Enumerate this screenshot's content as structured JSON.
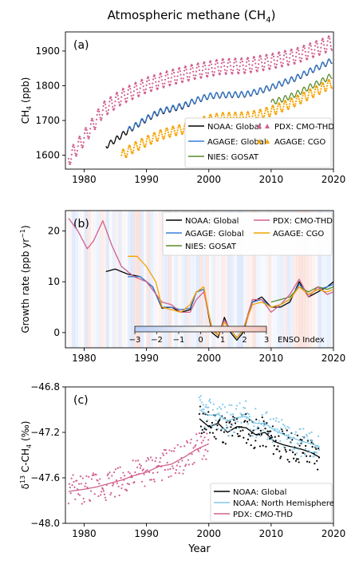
{
  "figure_title": "Atmospheric methane (CH",
  "figure_title_sub": "4",
  "figure_title_end": ")",
  "colors": {
    "noaa_global": "#000000",
    "agage_global": "#3a7fd5",
    "nies_gosat": "#5a8a2a",
    "pdx": "#d0608f",
    "agage_cgo": "#f4a300",
    "noaa_nh": "#80c8e6"
  },
  "chart_data": [
    {
      "type": "line",
      "panel_label": "(a)",
      "ylabel": "CH",
      "ylabel_sub": "4",
      "ylabel_end": " (ppb)",
      "xlim": [
        1977,
        2020
      ],
      "ylim": [
        1560,
        1955
      ],
      "xticks": [
        1980,
        1990,
        2000,
        2010,
        2020
      ],
      "yticks": [
        1600,
        1700,
        1800,
        1900
      ],
      "legend_position": "lower-right",
      "legend": [
        "NOAA: Global",
        "AGAGE: Global",
        "NIES: GOSAT",
        "PDX: CMO-THD",
        "AGAGE: CGO"
      ],
      "series": [
        {
          "name": "NOAA: Global",
          "key": "noaa_global",
          "style": "line",
          "x": [
            1983.5,
            1985,
            1987,
            1990,
            1992,
            1994,
            1996,
            1998,
            2000,
            2002,
            2004,
            2006,
            2008,
            2010,
            2012,
            2014,
            2016,
            2018,
            2019.8
          ],
          "y": [
            1626,
            1644,
            1670,
            1704,
            1724,
            1733,
            1742,
            1758,
            1770,
            1773,
            1774,
            1775,
            1784,
            1795,
            1809,
            1822,
            1840,
            1857,
            1873
          ]
        },
        {
          "name": "AGAGE: Global",
          "key": "agage_global",
          "style": "line",
          "x": [
            1987,
            1990,
            1992,
            1994,
            1996,
            1998,
            2000,
            2002,
            2004,
            2006,
            2008,
            2010,
            2012,
            2014,
            2016,
            2018,
            2019.8
          ],
          "y": [
            1672,
            1706,
            1726,
            1735,
            1744,
            1759,
            1771,
            1774,
            1775,
            1776,
            1785,
            1796,
            1810,
            1823,
            1841,
            1858,
            1874
          ]
        },
        {
          "name": "NIES: GOSAT",
          "key": "nies_gosat",
          "style": "line",
          "x": [
            2010,
            2012,
            2014,
            2016,
            2018,
            2019.8
          ],
          "y": [
            1752,
            1762,
            1776,
            1795,
            1812,
            1830
          ]
        },
        {
          "name": "PDX: CMO-THD",
          "key": "pdx",
          "style": "points",
          "x": [
            1977.5,
            1980,
            1983,
            1986,
            1990,
            1994,
            1998,
            2002,
            2006,
            2010,
            2014,
            2018,
            2019.8
          ],
          "y": [
            1590,
            1650,
            1730,
            1768,
            1802,
            1824,
            1842,
            1855,
            1858,
            1870,
            1886,
            1912,
            1925
          ]
        },
        {
          "name": "AGAGE: CGO",
          "key": "agage_cgo",
          "style": "points",
          "x": [
            1986,
            1988,
            1990,
            1992,
            1994,
            1996,
            1998,
            2000,
            2002,
            2004,
            2006,
            2008,
            2010,
            2012,
            2014,
            2016,
            2018,
            2019.8
          ],
          "y": [
            1600,
            1622,
            1640,
            1657,
            1668,
            1676,
            1690,
            1702,
            1708,
            1709,
            1710,
            1716,
            1727,
            1741,
            1756,
            1774,
            1792,
            1808
          ]
        }
      ]
    },
    {
      "type": "line",
      "panel_label": "(b)",
      "ylabel": "Growth rate (ppb yr",
      "ylabel_sup": "−1",
      "ylabel_end": ")",
      "xlim": [
        1977,
        2020
      ],
      "ylim": [
        -3,
        24
      ],
      "xticks": [
        1980,
        1990,
        2000,
        2010,
        2020
      ],
      "yticks": [
        0,
        10,
        20
      ],
      "legend_position": "top-right",
      "legend": [
        "NOAA: Global",
        "AGAGE: Global",
        "NIES: GOSAT",
        "PDX: CMO-THD",
        "AGAGE: CGO"
      ],
      "colorbar": {
        "label": "ENSO Index",
        "ticks": [
          "−3",
          "−2",
          "−1",
          "0",
          "1",
          "2",
          "3"
        ]
      },
      "series": [
        {
          "name": "NOAA: Global",
          "key": "noaa_global",
          "x": [
            1983.5,
            1985,
            1987,
            1989,
            1991,
            1992.5,
            1994,
            1995.5,
            1997,
            1998,
            1999.2,
            2000.5,
            2001.5,
            2002.5,
            2003.5,
            2004.5,
            2005.5,
            2007,
            2008.5,
            2010,
            2011.5,
            2013,
            2014.5,
            2016,
            2017.5,
            2019,
            2020
          ],
          "y": [
            12,
            12.5,
            11.5,
            11,
            9,
            4.8,
            5,
            4,
            4.5,
            8,
            8.5,
            0,
            -1,
            3,
            0,
            -1.5,
            0,
            6,
            7,
            5,
            5,
            6,
            10,
            7,
            8,
            9,
            10
          ]
        },
        {
          "name": "AGAGE: Global",
          "key": "agage_global",
          "x": [
            1987,
            1989,
            1991,
            1992.5,
            1994,
            1995.5,
            1997,
            1998,
            1999.2,
            2000.5,
            2001.5,
            2002.5,
            2003.5,
            2004.5,
            2005.5,
            2007,
            2008.5,
            2010,
            2011.5,
            2013,
            2014.5,
            2016,
            2017.5,
            2019,
            2020
          ],
          "y": [
            11,
            11,
            9,
            5,
            5,
            4.5,
            4.8,
            8,
            8.5,
            0.5,
            -0.5,
            2.5,
            0.5,
            -1,
            0.5,
            6,
            6.5,
            5,
            5.5,
            6.5,
            9.5,
            7.5,
            8.5,
            9,
            9.5
          ]
        },
        {
          "name": "NIES: GOSAT",
          "key": "nies_gosat",
          "x": [
            2010,
            2011.5,
            2013,
            2014.5,
            2016,
            2017.5,
            2019,
            2020
          ],
          "y": [
            6,
            6.5,
            7,
            9,
            8,
            9,
            8.5,
            9
          ]
        },
        {
          "name": "PDX: CMO-THD",
          "key": "pdx",
          "x": [
            1977.5,
            1979,
            1980.5,
            1981.5,
            1983,
            1984.5,
            1986,
            1988,
            1990,
            1992.5,
            1994,
            1995.5,
            1997,
            1998,
            1999.2,
            2000.5,
            2001.5,
            2002.5,
            2003.5,
            2004.5,
            2005.5,
            2007,
            2008.5,
            2010,
            2011.5,
            2013,
            2014.5,
            2016,
            2017.5,
            2019,
            2020
          ],
          "y": [
            22.5,
            20,
            16.5,
            18,
            22,
            17,
            13,
            11,
            10,
            6,
            5.5,
            4,
            4,
            6.5,
            8,
            1,
            -0.5,
            2.5,
            0.5,
            -1,
            0.5,
            6.5,
            6.5,
            4,
            5.5,
            7.5,
            10.5,
            7,
            9,
            7.5,
            8
          ]
        },
        {
          "name": "AGAGE: CGO",
          "key": "agage_cgo",
          "x": [
            1987,
            1988.5,
            1990,
            1991.5,
            1992.5,
            1994,
            1995.5,
            1997,
            1998,
            1999.2,
            2000.5,
            2001.5,
            2002.5,
            2003.5,
            2004.5,
            2005.5,
            2007,
            2008.5,
            2010,
            2011.5,
            2013,
            2014.5,
            2016,
            2017.5,
            2019,
            2020
          ],
          "y": [
            15,
            15,
            13,
            10,
            5,
            4.5,
            4,
            5.5,
            8,
            9,
            0.5,
            -0.5,
            2,
            0.5,
            -1,
            0.5,
            5.5,
            6,
            5,
            5.5,
            6.5,
            9,
            7.5,
            8.5,
            8,
            8.5
          ]
        }
      ]
    },
    {
      "type": "line",
      "panel_label": "(c)",
      "ylabel": "δ",
      "ylabel_sup": "13",
      "ylabel_end": " C-CH",
      "ylabel_sub": "4",
      "ylabel_tail": " (‰)",
      "xlabel": "Year",
      "xlim": [
        1977,
        2020
      ],
      "ylim": [
        -48.0,
        -46.8
      ],
      "xticks": [
        1980,
        1990,
        2000,
        2010,
        2020
      ],
      "yticks": [
        -48.0,
        -47.6,
        -47.2,
        -46.8
      ],
      "ytick_labels": [
        "−48.0",
        "−47.6",
        "−47.2",
        "−46.8"
      ],
      "legend_position": "lower-right",
      "legend": [
        "NOAA: Global",
        "NOAA: North Hemisphere",
        "PDX: CMO-THD"
      ],
      "series": [
        {
          "name": "NOAA: Global",
          "key": "noaa_global",
          "x": [
            1998.5,
            2000,
            2001.5,
            2003,
            2004.5,
            2006,
            2007.5,
            2009,
            2010.5,
            2012,
            2013.5,
            2015,
            2016.5,
            2017.8
          ],
          "y": [
            -47.08,
            -47.15,
            -47.12,
            -47.2,
            -47.15,
            -47.16,
            -47.22,
            -47.2,
            -47.28,
            -47.31,
            -47.33,
            -47.35,
            -47.38,
            -47.42
          ]
        },
        {
          "name": "NOAA: North Hemisphere",
          "key": "noaa_nh",
          "x": [
            1998.5,
            2000,
            2001.5,
            2003,
            2004.5,
            2006,
            2007.5,
            2009,
            2010.5,
            2012,
            2013.5,
            2015,
            2016.5,
            2017.8
          ],
          "y": [
            -47.0,
            -47.05,
            -47.04,
            -47.1,
            -47.07,
            -47.06,
            -47.12,
            -47.12,
            -47.18,
            -47.22,
            -47.25,
            -47.28,
            -47.3,
            -47.33
          ]
        },
        {
          "name": "PDX: CMO-THD",
          "key": "pdx",
          "x": [
            1977.5,
            1980,
            1982,
            1984,
            1986,
            1988,
            1990,
            1992,
            1994,
            1996,
            1998,
            2000
          ],
          "y": [
            -47.72,
            -47.7,
            -47.68,
            -47.65,
            -47.62,
            -47.58,
            -47.55,
            -47.5,
            -47.48,
            -47.42,
            -47.35,
            -47.3
          ]
        }
      ]
    }
  ]
}
